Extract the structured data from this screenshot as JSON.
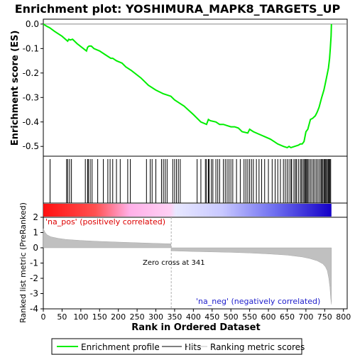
{
  "chart_data": {
    "type": "line",
    "title": "Enrichment plot: YOSHIMURA_MAPK8_TARGETS_UP",
    "es_panel": {
      "ylabel": "Enrichment score (ES)",
      "ylim": [
        -0.54,
        0.02
      ],
      "yticks": [
        0.0,
        -0.1,
        -0.2,
        -0.3,
        -0.4,
        -0.5
      ],
      "ytick_labels": [
        "0.0",
        "-0.1",
        "-0.2",
        "-0.3",
        "-0.4",
        "-0.5"
      ],
      "series": [
        {
          "name": "Enrichment profile",
          "color": "#00ee00",
          "x": [
            0,
            10,
            17,
            30,
            50,
            65,
            68,
            72,
            78,
            90,
            115,
            118,
            122,
            128,
            135,
            150,
            165,
            180,
            185,
            195,
            210,
            220,
            235,
            260,
            280,
            300,
            320,
            330,
            340,
            350,
            360,
            375,
            400,
            420,
            435,
            440,
            445,
            460,
            470,
            480,
            490,
            500,
            510,
            520,
            530,
            545,
            550,
            560,
            575,
            590,
            605,
            615,
            625,
            640,
            650,
            655,
            660,
            670,
            680,
            685,
            690,
            695,
            700,
            705,
            712,
            718,
            725,
            730,
            735,
            742,
            748,
            752,
            756,
            760,
            763,
            765,
            767,
            768
          ],
          "y": [
            0.0,
            -0.01,
            -0.015,
            -0.03,
            -0.05,
            -0.07,
            -0.062,
            -0.065,
            -0.062,
            -0.08,
            -0.11,
            -0.095,
            -0.09,
            -0.09,
            -0.1,
            -0.11,
            -0.125,
            -0.14,
            -0.14,
            -0.15,
            -0.16,
            -0.175,
            -0.19,
            -0.22,
            -0.25,
            -0.27,
            -0.285,
            -0.29,
            -0.295,
            -0.31,
            -0.32,
            -0.335,
            -0.37,
            -0.4,
            -0.41,
            -0.39,
            -0.395,
            -0.4,
            -0.41,
            -0.41,
            -0.415,
            -0.42,
            -0.42,
            -0.425,
            -0.44,
            -0.445,
            -0.43,
            -0.44,
            -0.45,
            -0.46,
            -0.47,
            -0.48,
            -0.49,
            -0.5,
            -0.505,
            -0.5,
            -0.505,
            -0.5,
            -0.495,
            -0.49,
            -0.49,
            -0.48,
            -0.44,
            -0.43,
            -0.39,
            -0.385,
            -0.375,
            -0.36,
            -0.34,
            -0.3,
            -0.27,
            -0.24,
            -0.21,
            -0.18,
            -0.14,
            -0.1,
            -0.05,
            0.0
          ]
        }
      ]
    },
    "hits": [
      18,
      62,
      65,
      70,
      75,
      112,
      118,
      120,
      125,
      130,
      145,
      160,
      172,
      178,
      185,
      195,
      205,
      225,
      232,
      275,
      285,
      290,
      300,
      315,
      320,
      325,
      330,
      345,
      350,
      355,
      360,
      365,
      410,
      420,
      432,
      435,
      440,
      442,
      448,
      452,
      460,
      465,
      470,
      480,
      485,
      490,
      495,
      500,
      505,
      515,
      525,
      535,
      540,
      545,
      550,
      555,
      560,
      568,
      575,
      582,
      590,
      600,
      610,
      618,
      625,
      632,
      640,
      645,
      650,
      655,
      660,
      662,
      668,
      672,
      675,
      680,
      685,
      688,
      692,
      695,
      698,
      700,
      702,
      705,
      708,
      712,
      716,
      720,
      724,
      728,
      732,
      736,
      740,
      742,
      745,
      748,
      750,
      752,
      755,
      757,
      760,
      762,
      764,
      766
    ],
    "ranked_panel": {
      "ylabel": "Ranked list metric (PreRanked)",
      "ylim": [
        -4,
        2
      ],
      "yticks": [
        2,
        1,
        0,
        -1,
        -2,
        -3,
        -4
      ],
      "ytick_labels": [
        "2",
        "1",
        "0",
        "-1",
        "-2",
        "-3",
        "-4"
      ],
      "series": [
        {
          "name": "Ranking metric scores",
          "color": "#c0c0c0",
          "x": [
            0,
            5,
            10,
            20,
            40,
            60,
            100,
            150,
            200,
            250,
            300,
            340,
            341,
            400,
            450,
            500,
            550,
            600,
            650,
            690,
            710,
            730,
            745,
            752,
            757,
            761,
            764,
            766,
            768
          ],
          "y": [
            1.25,
            1.0,
            0.85,
            0.72,
            0.62,
            0.55,
            0.48,
            0.42,
            0.37,
            0.33,
            0.29,
            0.26,
            -0.2,
            -0.24,
            -0.27,
            -0.3,
            -0.34,
            -0.4,
            -0.48,
            -0.6,
            -0.7,
            -0.85,
            -1.05,
            -1.25,
            -1.5,
            -2.0,
            -2.6,
            -3.3,
            -3.7
          ]
        }
      ],
      "annotations": {
        "na_pos": "'na_pos' (positively correlated)",
        "na_neg": "'na_neg' (negatively correlated)",
        "zero_cross": "Zero cross at 341"
      },
      "zero_cross": 341
    },
    "xlabel": "Rank in Ordered Dataset",
    "xlim": [
      0,
      810
    ],
    "xticks": [
      0,
      50,
      100,
      150,
      200,
      250,
      300,
      350,
      400,
      450,
      500,
      550,
      600,
      650,
      700,
      750,
      800
    ],
    "xtick_labels": [
      "0",
      "50",
      "100",
      "150",
      "200",
      "250",
      "300",
      "350",
      "400",
      "450",
      "500",
      "550",
      "600",
      "650",
      "700",
      "750",
      "800"
    ],
    "n_genes": 768,
    "legend": {
      "placement": "bottom",
      "entries": [
        "Enrichment profile",
        "Hits",
        "Ranking metric scores"
      ]
    },
    "colors": {
      "enrichment": "#00ee00",
      "hits": "#000000",
      "metric_fill": "#c0c0c0",
      "pos_strong": "#ff0000",
      "pos_light": "#ffb0e8",
      "neg_light": "#a0a0ff",
      "neg_strong": "#1400c8",
      "pos_text": "#dd0000",
      "neg_text": "#2020cc"
    }
  }
}
